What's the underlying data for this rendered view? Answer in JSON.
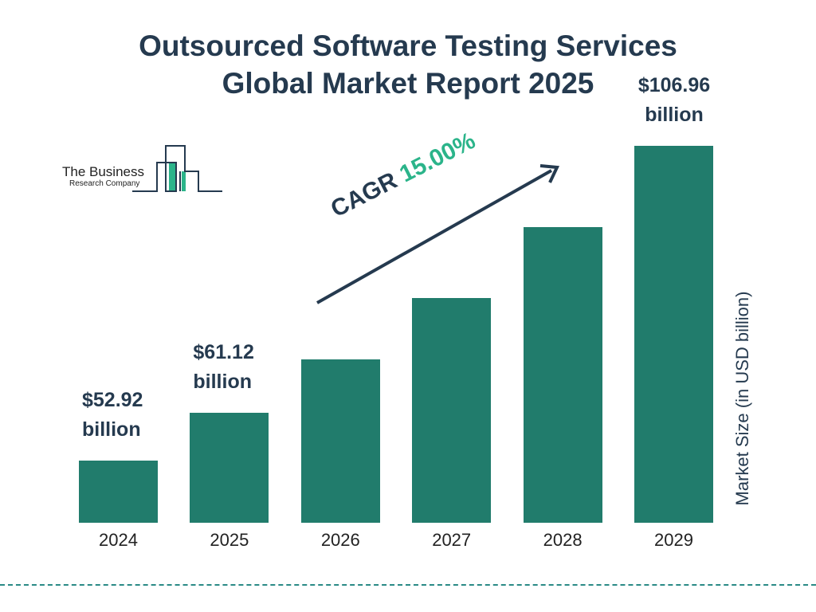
{
  "chart_data": {
    "type": "bar",
    "title": "Outsourced Software Testing Services Global Market Report 2025",
    "title_lines": [
      "Outsourced Software Testing Services",
      "Global Market Report 2025"
    ],
    "categories": [
      "2024",
      "2025",
      "2026",
      "2027",
      "2028",
      "2029"
    ],
    "values": [
      52.92,
      61.12,
      70.29,
      80.83,
      92.95,
      106.96
    ],
    "data_labels": [
      {
        "amount": "$52.92",
        "unit": "billion"
      },
      {
        "amount": "$61.12",
        "unit": "billion"
      },
      null,
      null,
      null,
      {
        "amount": "$106.96",
        "unit": "billion"
      }
    ],
    "ylabel": "Market Size (in USD billion)",
    "xlabel": "",
    "annotation": {
      "prefix": "CAGR",
      "value": "15.00%"
    },
    "grid": false,
    "colors": {
      "bar": "#217c6c",
      "text": "#253a4f",
      "cagr": "#2bb48a",
      "divider": "#2a8a86"
    }
  },
  "logo": {
    "line1": "The Business",
    "line2": "Research Company"
  }
}
